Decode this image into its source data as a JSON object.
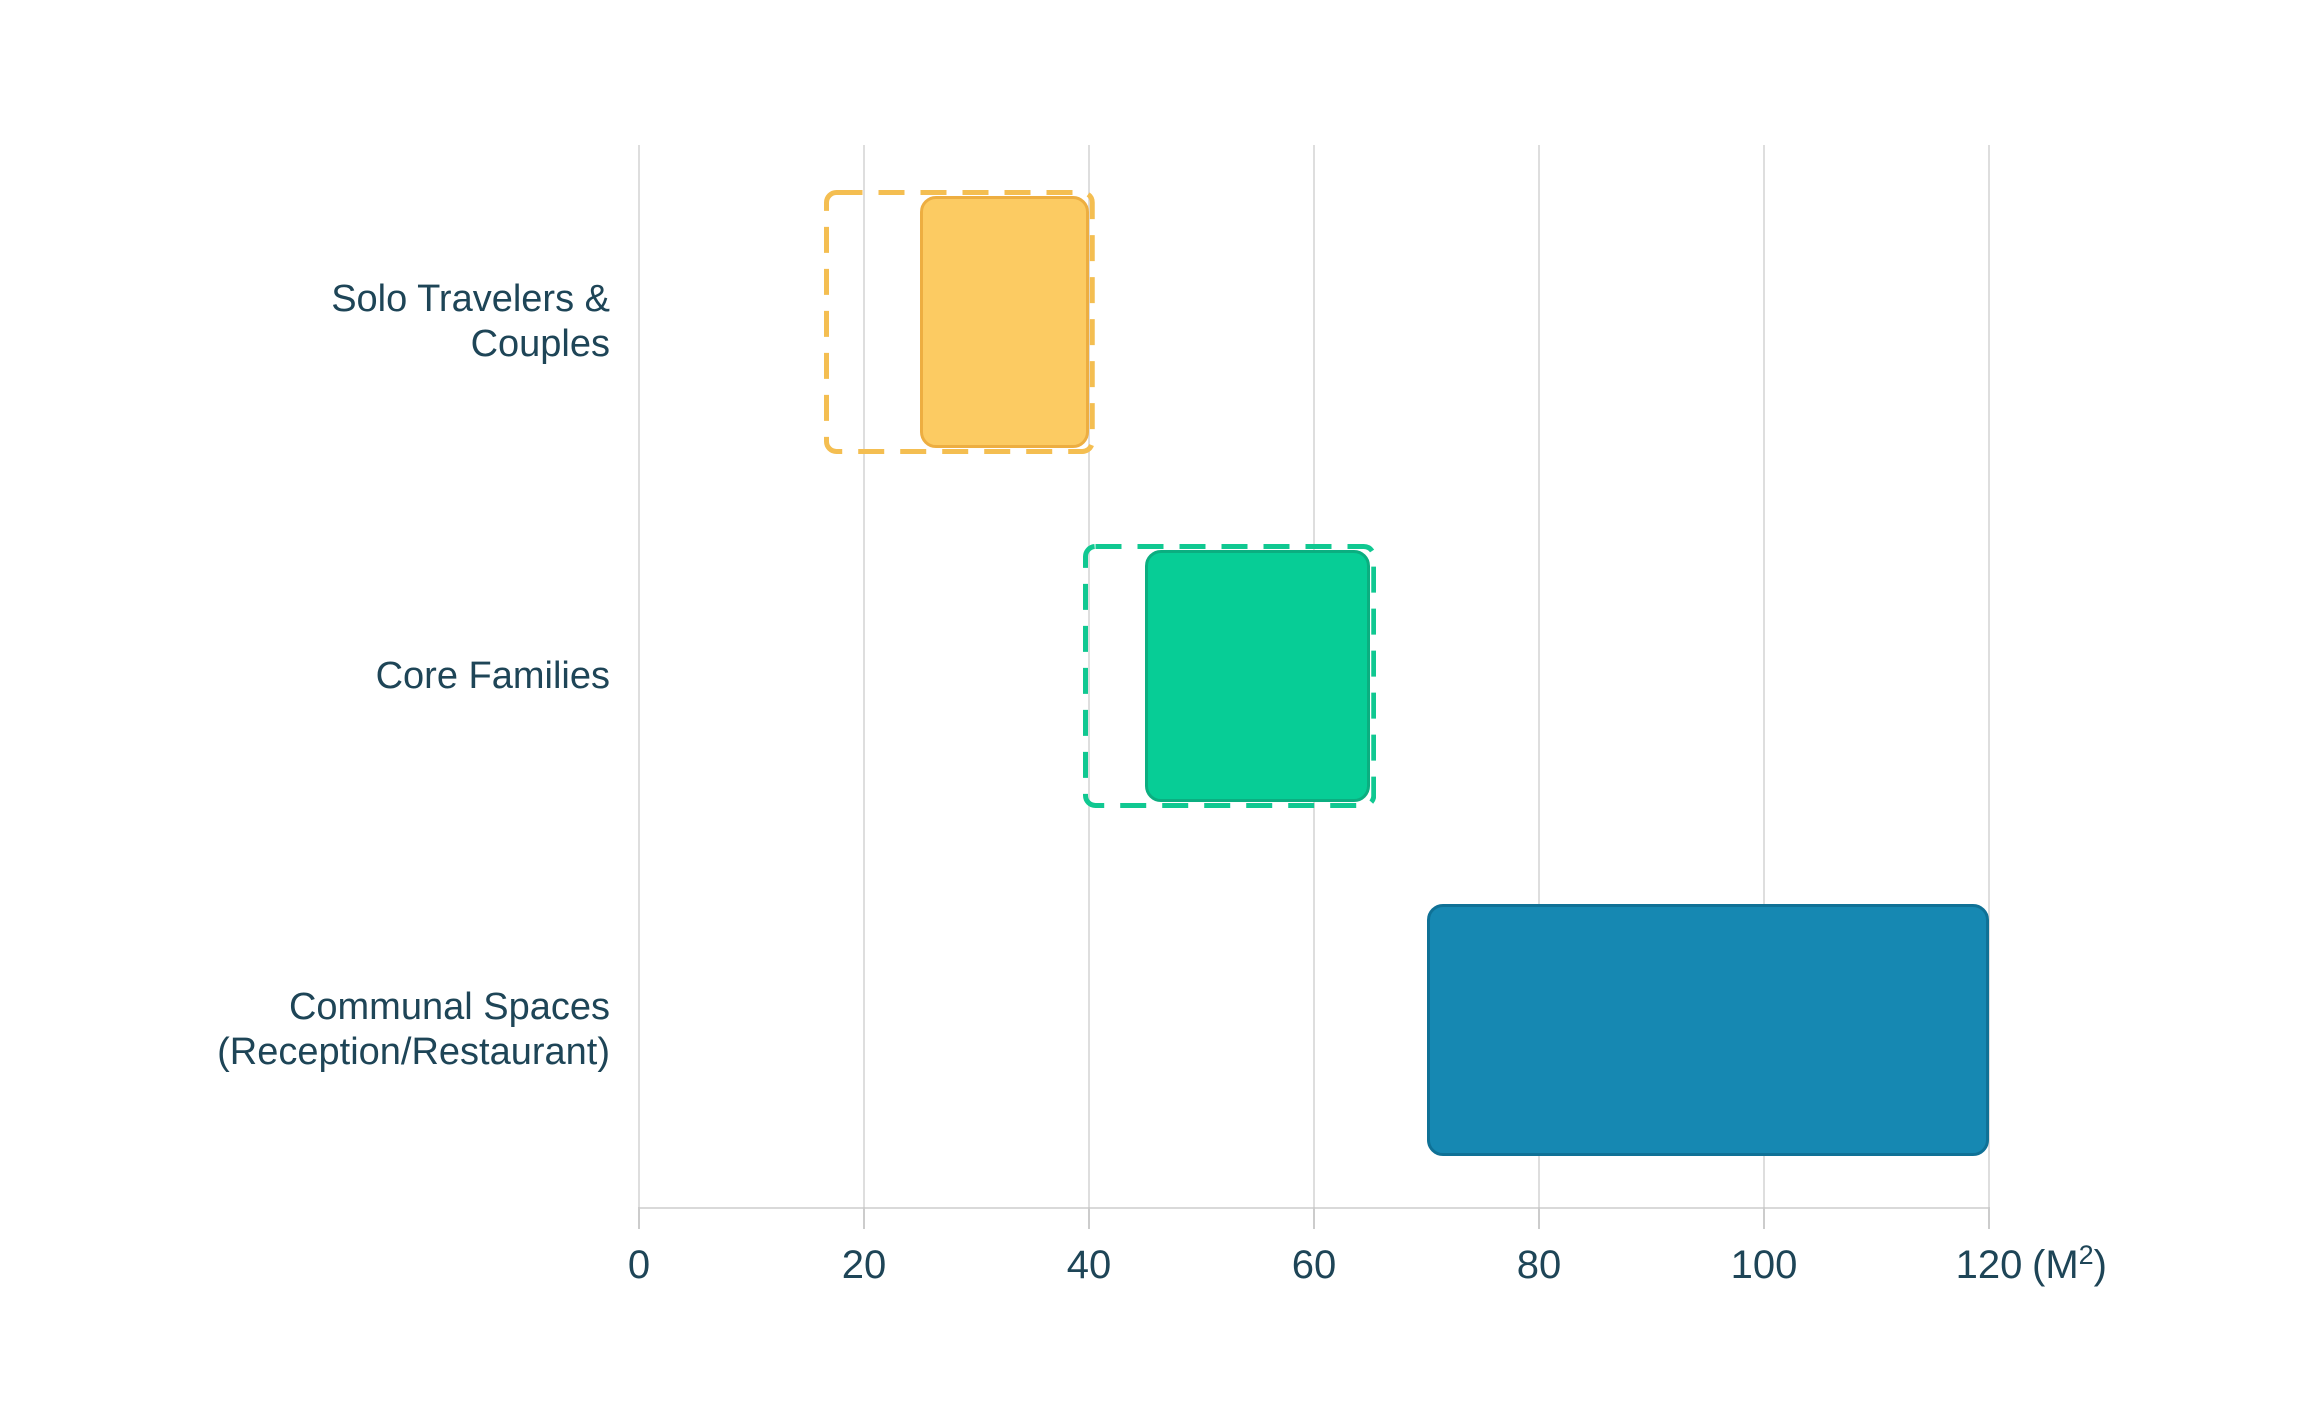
{
  "chart_data": {
    "type": "bar",
    "orientation": "horizontal",
    "xlabel": "",
    "ylabel": "",
    "xlim": [
      0,
      120
    ],
    "x_ticks": [
      0,
      20,
      40,
      60,
      80,
      100,
      120
    ],
    "grid": "vertical-only",
    "unit": {
      "prefix": "(M",
      "superscript": "2",
      "suffix": ")"
    },
    "categories": [
      "Solo Travelers & Couples",
      "Core Families",
      "Communal Spaces (Reception/Restaurant)"
    ],
    "category_lines": [
      [
        "Solo Travelers &",
        "Couples"
      ],
      [
        "Core Families"
      ],
      [
        "Communal Spaces",
        "(Reception/Restaurant)"
      ]
    ],
    "series": [
      {
        "name": "Solo Travelers & Couples",
        "solid_range": [
          25,
          40
        ],
        "dashed_range": [
          17,
          40
        ],
        "fill_color": "#FCCB62",
        "border_color": "#EDAE41",
        "dash_color": "#F4BE51"
      },
      {
        "name": "Core Families",
        "solid_range": [
          45,
          65
        ],
        "dashed_range": [
          40,
          65
        ],
        "fill_color": "#07CD96",
        "border_color": "#0BAE80",
        "dash_color": "#10C891"
      },
      {
        "name": "Communal Spaces (Reception/Restaurant)",
        "solid_range": [
          70,
          120
        ],
        "dashed_range": null,
        "fill_color": "#1688B2",
        "border_color": "#0F7196",
        "dash_color": null
      }
    ],
    "colors": {
      "grid": "#DEDEDE",
      "axis_baseline": "#D9D9D9",
      "tick": "#CCCCCC",
      "text": "#1E4557",
      "background": "#FFFFFF"
    }
  }
}
